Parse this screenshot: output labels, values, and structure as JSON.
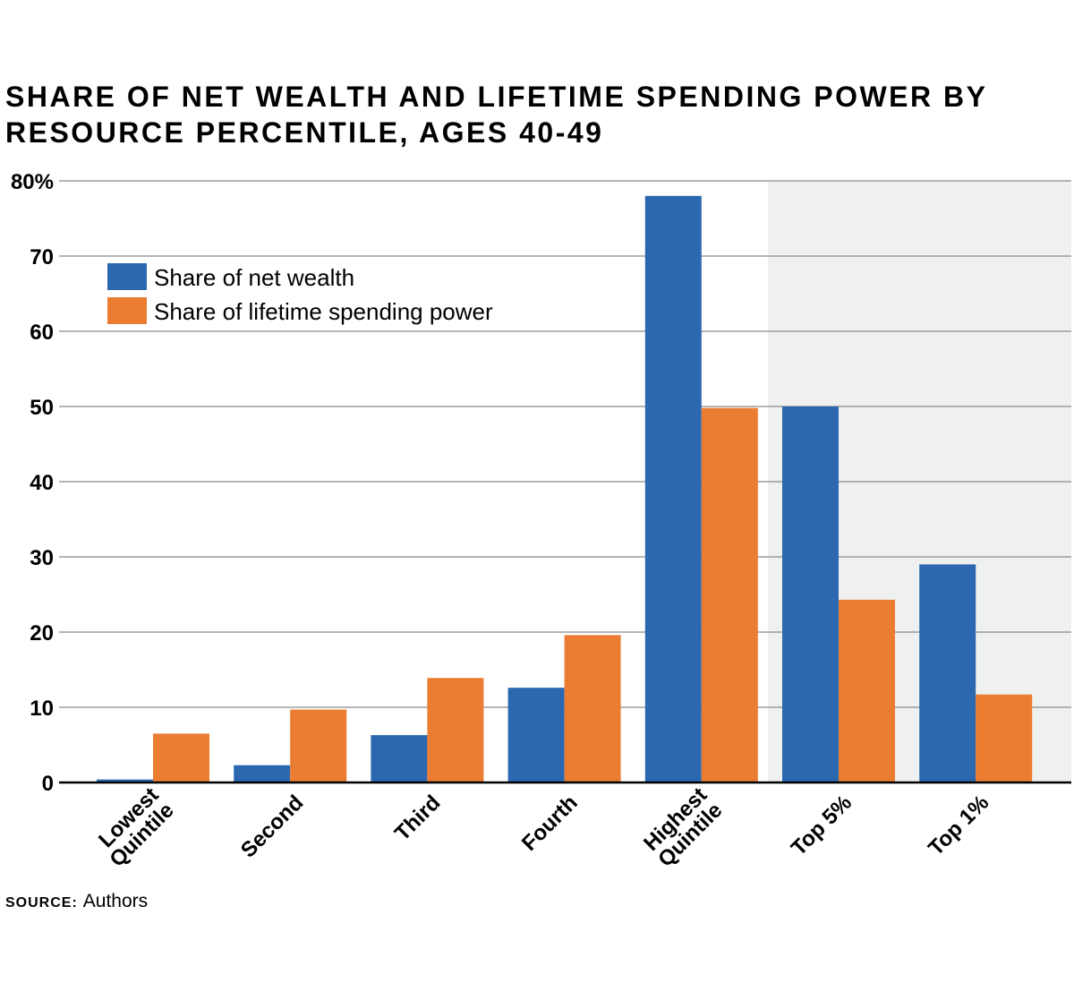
{
  "chart_data": {
    "type": "bar",
    "title": "SHARE OF NET WEALTH AND LIFETIME SPENDING POWER BY RESOURCE PERCENTILE, AGES 40-49",
    "categories": [
      [
        "Lowest",
        "Quintile"
      ],
      [
        "Second"
      ],
      [
        "Third"
      ],
      [
        "Fourth"
      ],
      [
        "Highest",
        "Quintile"
      ],
      [
        "Top 5%"
      ],
      [
        "Top 1%"
      ]
    ],
    "series": [
      {
        "name": "Share of net wealth",
        "color": "#2b68b0",
        "values": [
          0.4,
          2.3,
          6.3,
          12.6,
          78.0,
          50.0,
          29.0
        ]
      },
      {
        "name": "Share of lifetime spending power",
        "color": "#ea7d32",
        "values": [
          6.5,
          9.7,
          13.9,
          19.6,
          49.8,
          24.3,
          11.7
        ]
      }
    ],
    "yticks": [
      "0",
      "10",
      "20",
      "30",
      "40",
      "50",
      "60",
      "70",
      "80%"
    ],
    "ylim": [
      0,
      80
    ],
    "xlabel": "",
    "ylabel": "",
    "grid": true,
    "legend_position": "top-left",
    "highlight_region": {
      "from_category": "Top 5%",
      "color": "#eff1f0"
    }
  },
  "source": {
    "label": "SOURCE:",
    "text": "Authors"
  }
}
